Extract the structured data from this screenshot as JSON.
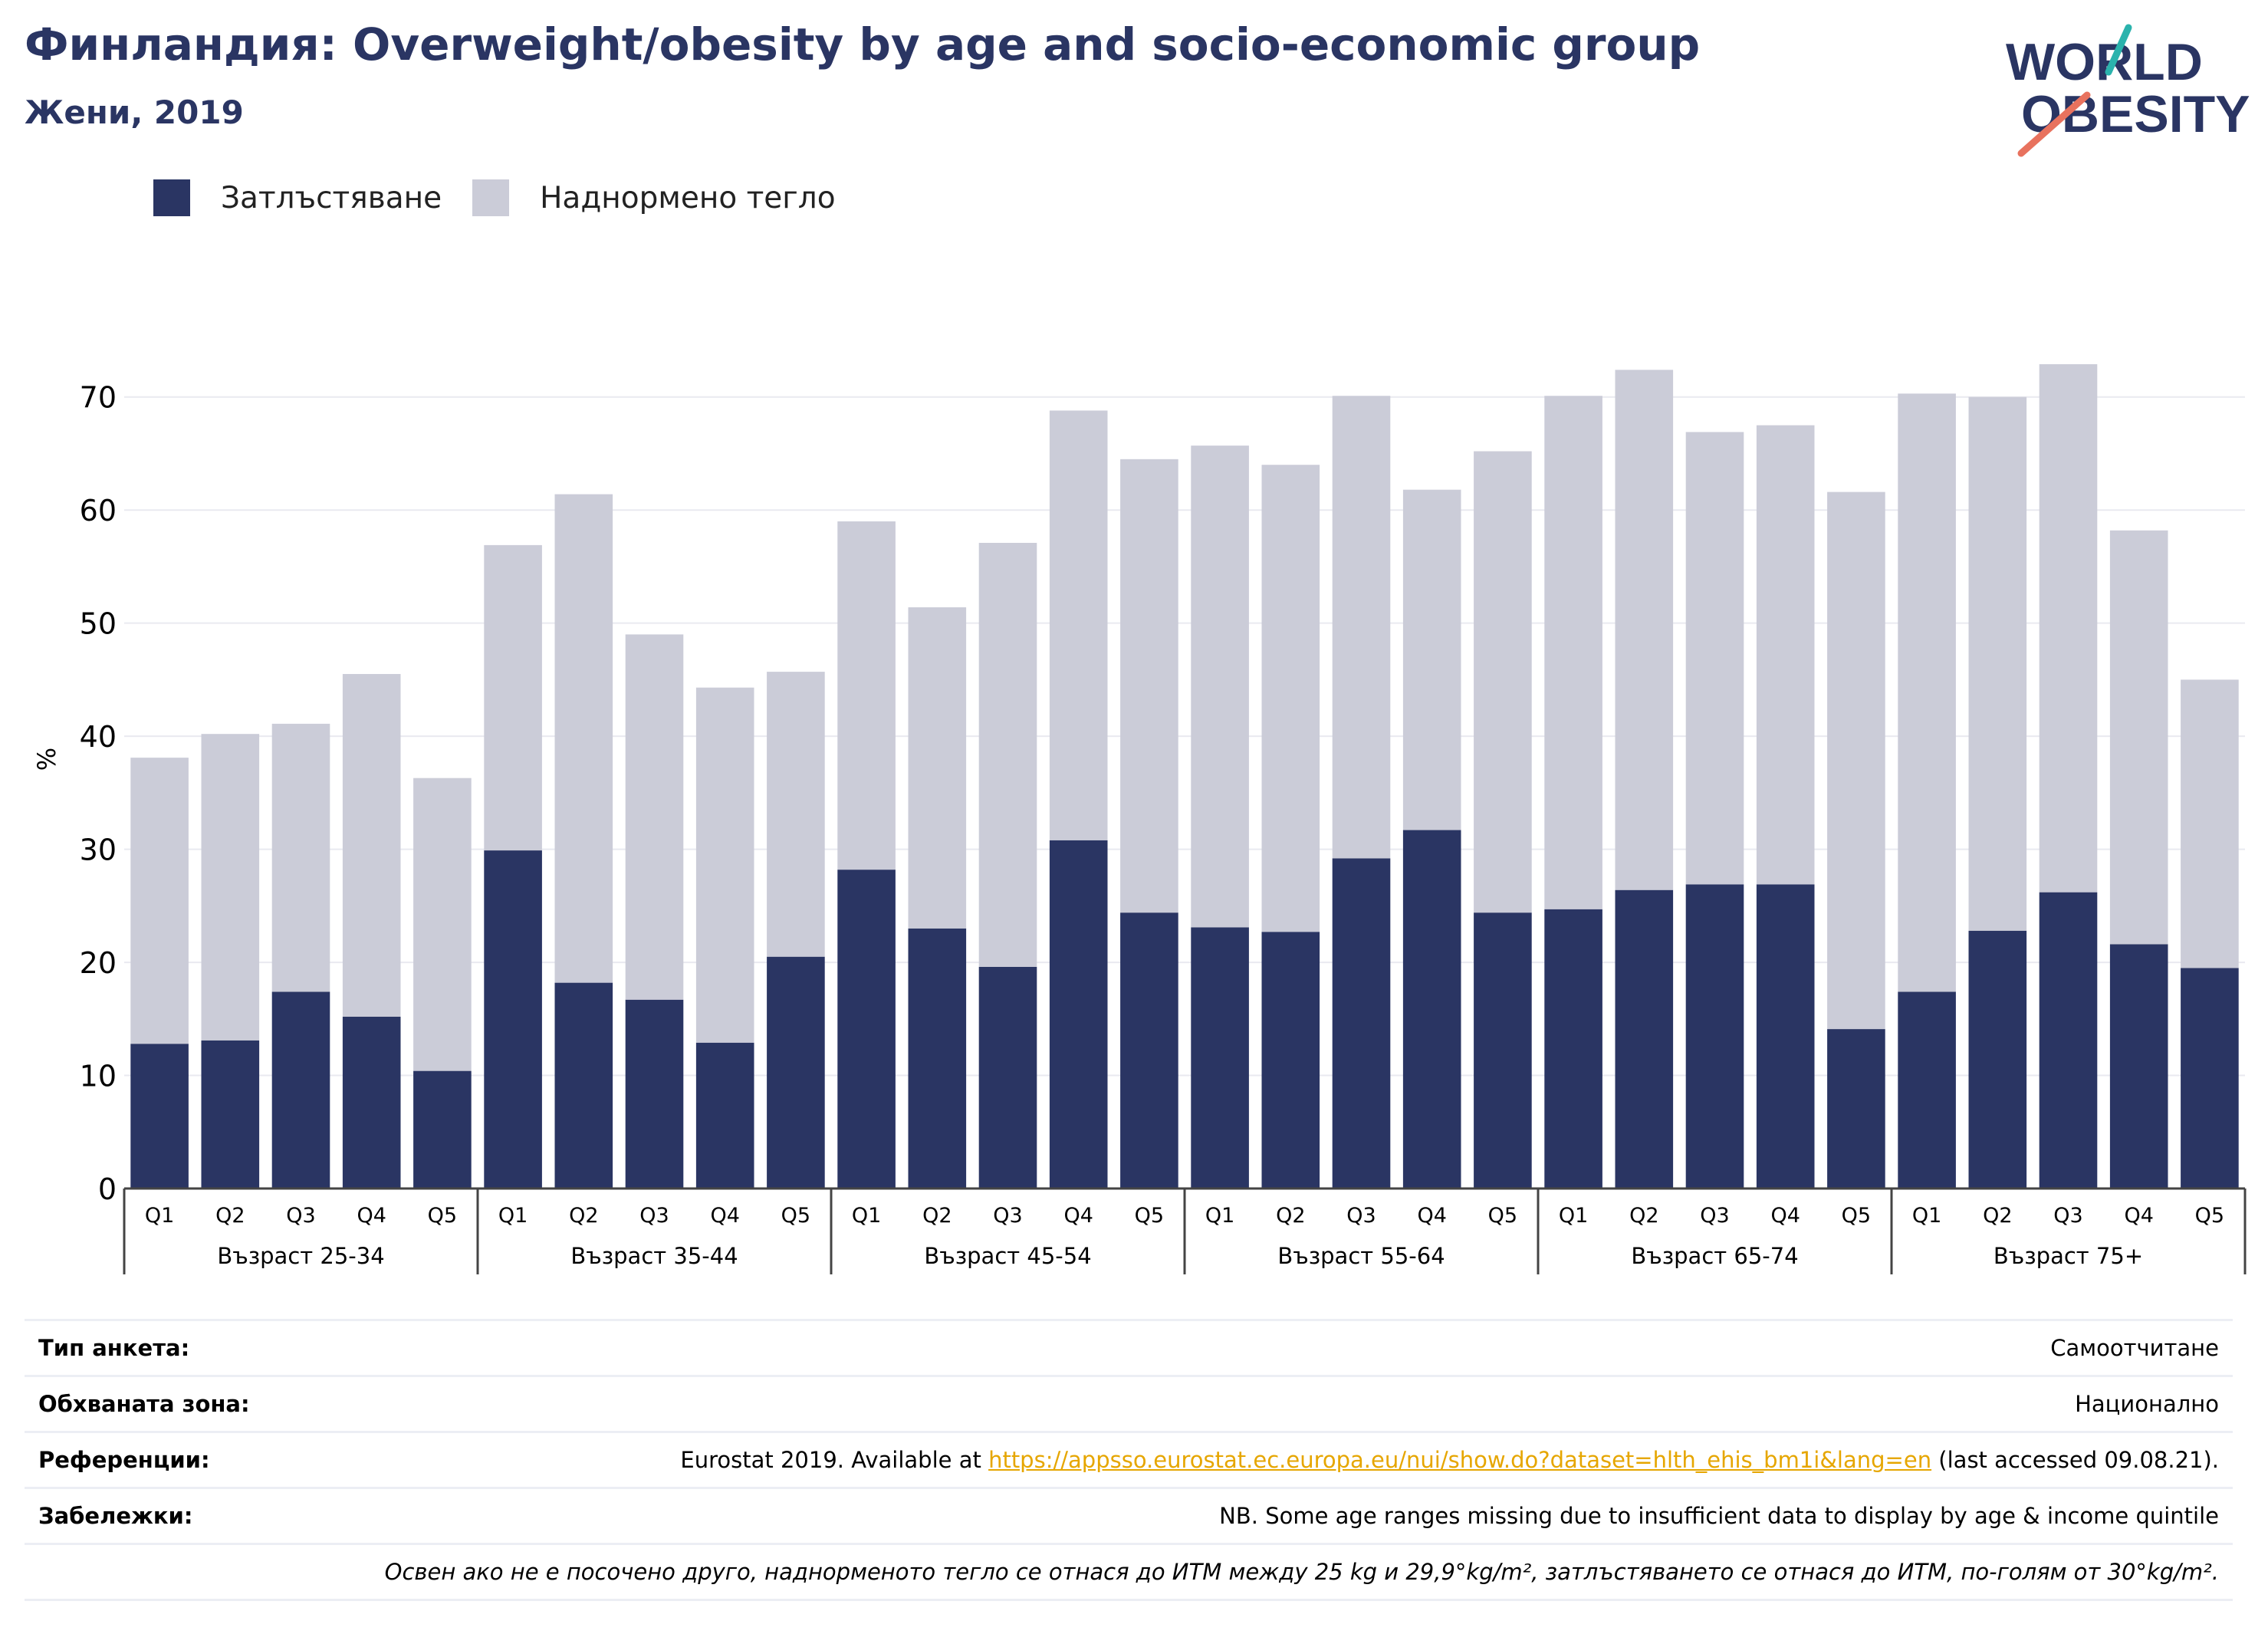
{
  "header": {
    "title": "Финландия: Overweight/obesity by age and socio-economic group",
    "subtitle": "Жени, 2019"
  },
  "logo": {
    "line1": "WORLD",
    "line2": "OBESITY"
  },
  "colors": {
    "obesity": "#2a3563",
    "overweight": "#cbccd8",
    "title": "#2a3563",
    "grid": "#e9eaf0",
    "link": "#e6a600",
    "logo_teal": "#2bb3ad",
    "logo_coral": "#e8725e"
  },
  "chart_data": {
    "type": "bar",
    "stacked": true,
    "ylabel": "%",
    "ylim": [
      0,
      75
    ],
    "yticks": [
      0,
      10,
      20,
      30,
      40,
      50,
      60,
      70
    ],
    "grid": true,
    "legend_position": "top-left",
    "groups": [
      "Възраст 25-34",
      "Възраст 35-44",
      "Възраст 45-54",
      "Възраст 55-64",
      "Възраст 65-74",
      "Възраст 75+"
    ],
    "categories": [
      "Q1",
      "Q2",
      "Q3",
      "Q4",
      "Q5"
    ],
    "series": [
      {
        "name": "Затлъстяване",
        "values": [
          [
            12.8,
            13.1,
            17.4,
            15.2,
            10.4
          ],
          [
            29.9,
            18.2,
            16.7,
            12.9,
            20.5
          ],
          [
            28.2,
            23.0,
            19.6,
            30.8,
            24.4
          ],
          [
            23.1,
            22.7,
            29.2,
            31.7,
            24.4
          ],
          [
            24.7,
            26.4,
            26.9,
            26.9,
            14.1
          ],
          [
            17.4,
            22.8,
            26.2,
            21.6,
            19.5
          ]
        ]
      },
      {
        "name": "Наднормено тегло",
        "values": [
          [
            25.3,
            27.1,
            23.7,
            30.3,
            25.9
          ],
          [
            27.0,
            43.2,
            32.3,
            31.4,
            25.2
          ],
          [
            30.8,
            28.4,
            37.5,
            38.0,
            40.1
          ],
          [
            42.6,
            41.3,
            40.9,
            30.1,
            40.8
          ],
          [
            45.4,
            46.0,
            40.0,
            40.6,
            47.5
          ],
          [
            52.9,
            47.2,
            46.7,
            36.6,
            25.5
          ]
        ]
      }
    ]
  },
  "info": {
    "survey_label": "Тип анкета:",
    "survey_value": "Самоотчитане",
    "area_label": "Обхваната зона:",
    "area_value": "Национално",
    "refs_label": "Референции:",
    "refs_prefix": "Eurostat 2019. Available at ",
    "refs_link": "https://appsso.eurostat.ec.europa.eu/nui/show.do?dataset=hlth_ehis_bm1i&lang=en",
    "refs_suffix": " (last accessed 09.08.21).",
    "notes_label": "Забележки:",
    "notes_value": "NB. Some age ranges missing due to insufficient data to display by age & income quintile",
    "footnote": "Освен ако не е посочено друго, наднорменото тегло се отнася до ИТМ между 25 kg и 29,9°kg/m², затлъстяването се отнася до ИТМ, по-голям от 30°kg/m²."
  }
}
